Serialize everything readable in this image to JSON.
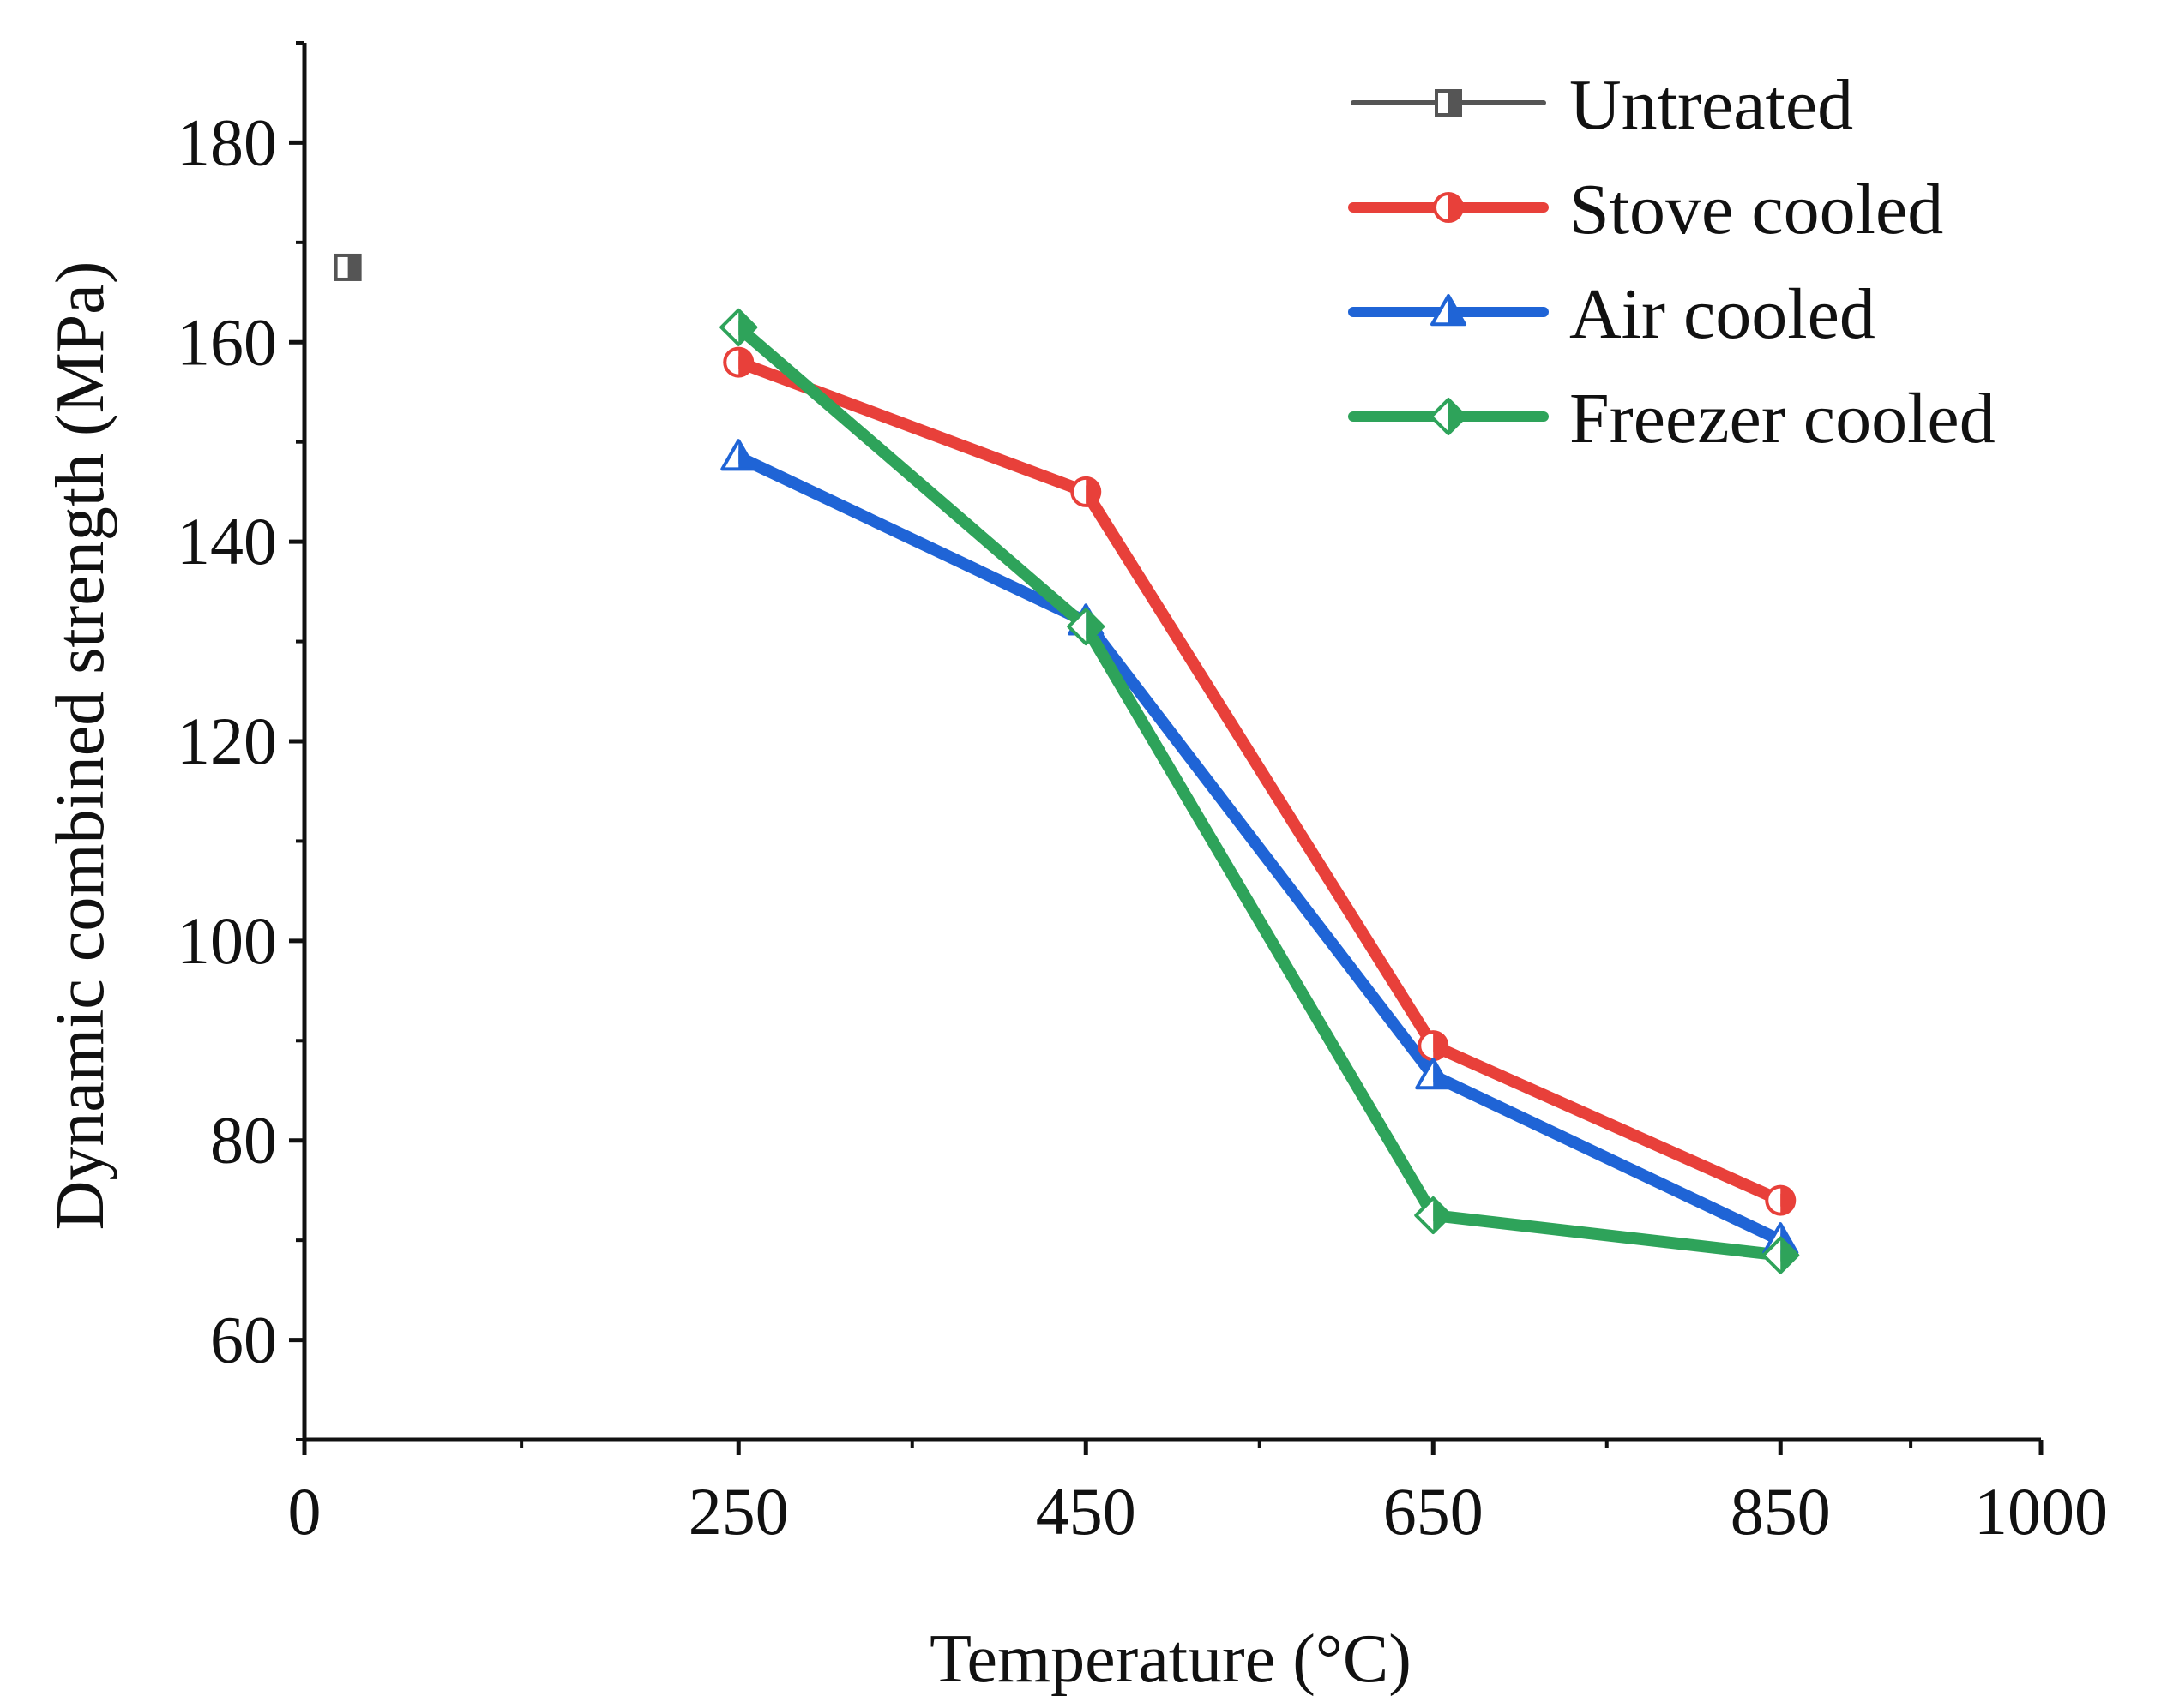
{
  "chart_data": {
    "type": "line",
    "title": "",
    "xlabel": "Temperature (°C)",
    "ylabel": "Dynamic combined strength (MPa)",
    "xlim": [
      0,
      1000
    ],
    "ylim": [
      50,
      190
    ],
    "xticks": [
      0,
      250,
      450,
      650,
      850,
      1000
    ],
    "xtick_labels": [
      "0",
      "250",
      "450",
      "650",
      "850",
      "1000"
    ],
    "yticks": [
      60,
      80,
      100,
      120,
      140,
      160,
      180
    ],
    "ytick_labels": [
      "60",
      "80",
      "100",
      "120",
      "140",
      "160",
      "180"
    ],
    "grid": false,
    "legend_position": "top-right",
    "series": [
      {
        "name": "Untreated",
        "color": "#555555",
        "marker": "square",
        "x": [
          25
        ],
        "y": [
          167.5
        ]
      },
      {
        "name": "Stove cooled",
        "color": "#e8403a",
        "marker": "circle",
        "x": [
          250,
          450,
          650,
          850
        ],
        "y": [
          158,
          145,
          89.5,
          74
        ]
      },
      {
        "name": "Air cooled",
        "color": "#1f64d6",
        "marker": "triangle",
        "x": [
          250,
          450,
          650,
          850
        ],
        "y": [
          148.5,
          132,
          86.5,
          70
        ]
      },
      {
        "name": "Freezer cooled",
        "color": "#2ea35a",
        "marker": "diamond",
        "x": [
          250,
          450,
          650,
          850
        ],
        "y": [
          161.5,
          131.5,
          72.5,
          68.5
        ]
      }
    ]
  }
}
